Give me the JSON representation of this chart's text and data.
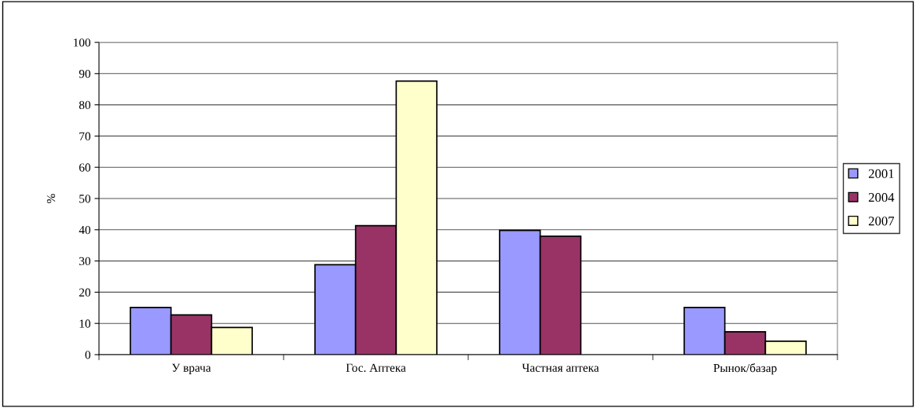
{
  "chart_data": {
    "type": "bar",
    "ylabel": "%",
    "categories": [
      "У врача",
      "Гос. Аптека",
      "Частная аптека",
      "Рынок/базар"
    ],
    "series": [
      {
        "name": "2001",
        "color": "#9999ff",
        "values": [
          15.1,
          28.8,
          39.8,
          15.1
        ]
      },
      {
        "name": "2004",
        "color": "#993366",
        "values": [
          12.7,
          41.3,
          37.9,
          7.3
        ]
      },
      {
        "name": "2007",
        "color": "#ffffcc",
        "values": [
          8.7,
          87.6,
          null,
          4.3
        ]
      }
    ],
    "ylim": [
      0,
      100
    ],
    "yticks": [
      0,
      10,
      20,
      30,
      40,
      50,
      60,
      70,
      80,
      90,
      100
    ],
    "grid": "y",
    "legend": "right"
  }
}
